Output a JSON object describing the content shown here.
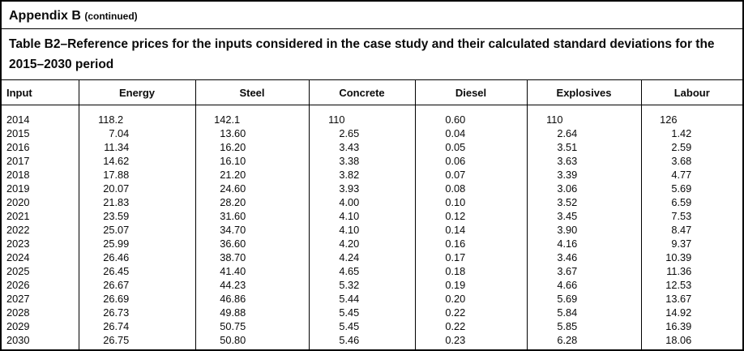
{
  "header": {
    "appendix_title": "Appendix B",
    "continued_label": "(continued)",
    "caption": "Table B2–Reference prices for the inputs considered in the case study and their calculated standard deviations for the 2015–2030 period"
  },
  "table": {
    "headers": [
      "Input",
      "Energy",
      "Steel",
      "Concrete",
      "Diesel",
      "Explosives",
      "Labour"
    ],
    "rows": [
      {
        "year": "2014",
        "values": [
          "118.2",
          "142.1",
          "110",
          "0.60",
          "110",
          "126"
        ]
      },
      {
        "year": "2015",
        "values": [
          "7.04",
          "13.60",
          "2.65",
          "0.04",
          "2.64",
          "1.42"
        ]
      },
      {
        "year": "2016",
        "values": [
          "11.34",
          "16.20",
          "3.43",
          "0.05",
          "3.51",
          "2.59"
        ]
      },
      {
        "year": "2017",
        "values": [
          "14.62",
          "16.10",
          "3.38",
          "0.06",
          "3.63",
          "3.68"
        ]
      },
      {
        "year": "2018",
        "values": [
          "17.88",
          "21.20",
          "3.82",
          "0.07",
          "3.39",
          "4.77"
        ]
      },
      {
        "year": "2019",
        "values": [
          "20.07",
          "24.60",
          "3.93",
          "0.08",
          "3.06",
          "5.69"
        ]
      },
      {
        "year": "2020",
        "values": [
          "21.83",
          "28.20",
          "4.00",
          "0.10",
          "3.52",
          "6.59"
        ]
      },
      {
        "year": "2021",
        "values": [
          "23.59",
          "31.60",
          "4.10",
          "0.12",
          "3.45",
          "7.53"
        ]
      },
      {
        "year": "2022",
        "values": [
          "25.07",
          "34.70",
          "4.10",
          "0.14",
          "3.90",
          "8.47"
        ]
      },
      {
        "year": "2023",
        "values": [
          "25.99",
          "36.60",
          "4.20",
          "0.16",
          "4.16",
          "9.37"
        ]
      },
      {
        "year": "2024",
        "values": [
          "26.46",
          "38.70",
          "4.24",
          "0.17",
          "3.46",
          "10.39"
        ]
      },
      {
        "year": "2025",
        "values": [
          "26.45",
          "41.40",
          "4.65",
          "0.18",
          "3.67",
          "11.36"
        ]
      },
      {
        "year": "2026",
        "values": [
          "26.67",
          "44.23",
          "5.32",
          "0.19",
          "4.66",
          "12.53"
        ]
      },
      {
        "year": "2027",
        "values": [
          "26.69",
          "46.86",
          "5.44",
          "0.20",
          "5.69",
          "13.67"
        ]
      },
      {
        "year": "2028",
        "values": [
          "26.73",
          "49.88",
          "5.45",
          "0.22",
          "5.84",
          "14.92"
        ]
      },
      {
        "year": "2029",
        "values": [
          "26.74",
          "50.75",
          "5.45",
          "0.22",
          "5.85",
          "16.39"
        ]
      },
      {
        "year": "2030",
        "values": [
          "26.75",
          "50.80",
          "5.46",
          "0.23",
          "6.28",
          "18.06"
        ]
      }
    ]
  }
}
